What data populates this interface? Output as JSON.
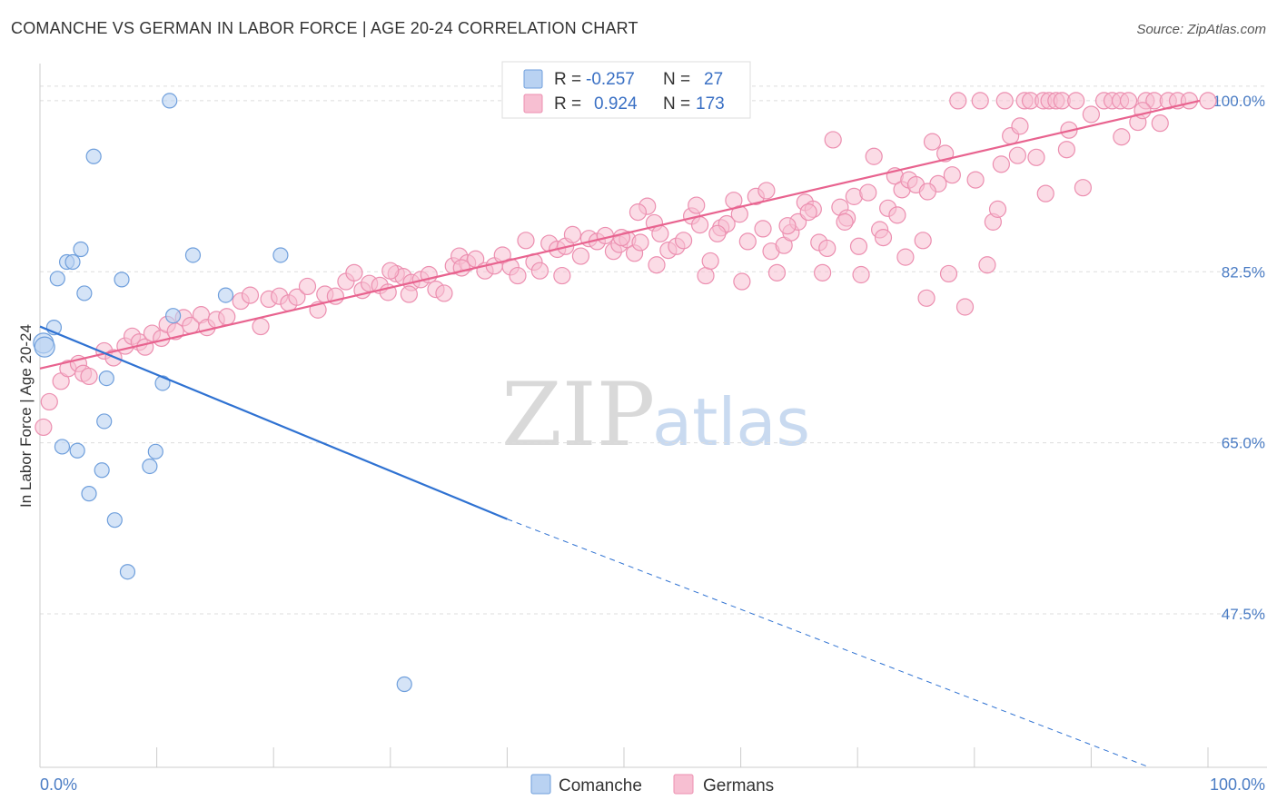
{
  "title": "COMANCHE VS GERMAN IN LABOR FORCE | AGE 20-24 CORRELATION CHART",
  "source": "Source: ZipAtlas.com",
  "watermark": {
    "zip": "ZIP",
    "atlas": "atlas"
  },
  "colors": {
    "comanche_fill": "#b9d2f2",
    "comanche_stroke": "#6f9fdc",
    "comanche_line": "#2f72d2",
    "german_fill": "#f7bfd2",
    "german_stroke": "#ec8fb0",
    "german_line": "#e8638f",
    "grid": "#dddddd",
    "axis_text": "#4a7cc4"
  },
  "legend": {
    "rows": [
      {
        "r_label": "R =",
        "r_value": "-0.257",
        "n_label": "N =",
        "n_value": "27"
      },
      {
        "r_label": "R =",
        "r_value": "0.924",
        "n_label": "N =",
        "n_value": "173"
      }
    ]
  },
  "bottom_legend": [
    "Comanche",
    "Germans"
  ],
  "chart_data": {
    "type": "scatter",
    "title": "COMANCHE VS GERMAN IN LABOR FORCE | AGE 20-24 CORRELATION CHART",
    "xlabel": "",
    "ylabel": "In Labor Force | Age 20-24",
    "xlim": [
      0,
      100
    ],
    "ylim": [
      31.8,
      103.8
    ],
    "x_tick_labels": [
      "0.0%",
      "100.0%"
    ],
    "y_ticks": [
      47.5,
      65.0,
      82.5,
      100.0
    ],
    "y_tick_labels": [
      "47.5%",
      "65.0%",
      "82.5%",
      "100.0%"
    ],
    "grid": "horizontal dashed",
    "legend_position": "top-center",
    "series": [
      {
        "name": "Comanche",
        "R": -0.257,
        "N": 27,
        "trend": {
          "x0": 0,
          "y0": 76.9,
          "x1": 40,
          "y1": 57.2,
          "dashed_to_x": 95,
          "dashed_to_y": 31.8
        },
        "points": [
          [
            0.3,
            75.2
          ],
          [
            0.4,
            74.8
          ],
          [
            1.2,
            76.8
          ],
          [
            1.5,
            81.8
          ],
          [
            2.3,
            83.5
          ],
          [
            2.8,
            83.5
          ],
          [
            3.5,
            84.8
          ],
          [
            3.8,
            80.3
          ],
          [
            4.6,
            94.3
          ],
          [
            5.5,
            67.2
          ],
          [
            5.7,
            71.6
          ],
          [
            6.4,
            57.1
          ],
          [
            7.0,
            81.7
          ],
          [
            7.5,
            51.8
          ],
          [
            9.4,
            62.6
          ],
          [
            9.9,
            64.1
          ],
          [
            10.5,
            71.1
          ],
          [
            11.1,
            100.0
          ],
          [
            11.4,
            78.0
          ],
          [
            13.1,
            84.2
          ],
          [
            15.9,
            80.1
          ],
          [
            20.6,
            84.2
          ],
          [
            31.2,
            40.3
          ],
          [
            1.9,
            64.6
          ],
          [
            3.2,
            64.2
          ],
          [
            4.2,
            59.8
          ],
          [
            5.3,
            62.2
          ]
        ]
      },
      {
        "name": "Germans",
        "R": 0.924,
        "N": 173,
        "trend": {
          "x0": 0,
          "y0": 72.6,
          "x1": 99.3,
          "y1": 100.0
        },
        "points": [
          [
            0.3,
            66.6
          ],
          [
            0.8,
            69.2
          ],
          [
            1.8,
            71.3
          ],
          [
            2.4,
            72.6
          ],
          [
            3.3,
            73.1
          ],
          [
            3.7,
            72.1
          ],
          [
            4.2,
            71.8
          ],
          [
            5.5,
            74.4
          ],
          [
            6.3,
            73.7
          ],
          [
            7.3,
            74.9
          ],
          [
            7.9,
            75.9
          ],
          [
            8.5,
            75.3
          ],
          [
            9.0,
            74.8
          ],
          [
            9.6,
            76.2
          ],
          [
            10.4,
            75.7
          ],
          [
            10.9,
            77.1
          ],
          [
            11.6,
            76.4
          ],
          [
            12.3,
            77.8
          ],
          [
            12.9,
            77.0
          ],
          [
            13.8,
            78.1
          ],
          [
            14.3,
            76.8
          ],
          [
            15.1,
            77.6
          ],
          [
            16.0,
            77.9
          ],
          [
            17.2,
            79.5
          ],
          [
            18.0,
            80.1
          ],
          [
            18.9,
            76.9
          ],
          [
            19.6,
            79.7
          ],
          [
            20.5,
            80.0
          ],
          [
            21.3,
            79.3
          ],
          [
            22.0,
            79.9
          ],
          [
            22.9,
            81.0
          ],
          [
            23.8,
            78.6
          ],
          [
            24.4,
            80.2
          ],
          [
            25.3,
            80.0
          ],
          [
            26.2,
            81.5
          ],
          [
            26.9,
            82.4
          ],
          [
            27.6,
            80.6
          ],
          [
            28.2,
            81.3
          ],
          [
            29.1,
            81.1
          ],
          [
            29.8,
            80.4
          ],
          [
            30.5,
            82.3
          ],
          [
            31.1,
            82.0
          ],
          [
            31.8,
            81.4
          ],
          [
            32.6,
            81.7
          ],
          [
            33.3,
            82.2
          ],
          [
            33.9,
            80.7
          ],
          [
            34.6,
            80.3
          ],
          [
            35.4,
            83.1
          ],
          [
            35.9,
            84.1
          ],
          [
            36.6,
            83.4
          ],
          [
            37.3,
            83.8
          ],
          [
            38.1,
            82.6
          ],
          [
            38.9,
            83.1
          ],
          [
            39.6,
            84.2
          ],
          [
            40.3,
            83.0
          ],
          [
            40.9,
            82.1
          ],
          [
            41.6,
            85.7
          ],
          [
            42.3,
            83.5
          ],
          [
            42.8,
            82.6
          ],
          [
            43.6,
            85.4
          ],
          [
            44.3,
            84.8
          ],
          [
            45.0,
            85.1
          ],
          [
            45.6,
            86.3
          ],
          [
            46.3,
            84.1
          ],
          [
            47.0,
            85.9
          ],
          [
            47.7,
            85.6
          ],
          [
            48.4,
            86.2
          ],
          [
            49.1,
            84.6
          ],
          [
            49.6,
            85.3
          ],
          [
            50.3,
            85.8
          ],
          [
            50.9,
            84.4
          ],
          [
            51.4,
            85.5
          ],
          [
            52.0,
            89.2
          ],
          [
            52.6,
            87.5
          ],
          [
            53.1,
            86.4
          ],
          [
            53.8,
            84.7
          ],
          [
            54.5,
            85.1
          ],
          [
            55.1,
            85.7
          ],
          [
            55.8,
            88.2
          ],
          [
            56.2,
            89.3
          ],
          [
            57.0,
            82.1
          ],
          [
            57.4,
            83.6
          ],
          [
            58.3,
            87.0
          ],
          [
            58.8,
            87.4
          ],
          [
            59.4,
            89.8
          ],
          [
            59.9,
            88.4
          ],
          [
            60.6,
            85.6
          ],
          [
            61.3,
            90.2
          ],
          [
            61.9,
            86.9
          ],
          [
            62.6,
            84.6
          ],
          [
            63.1,
            82.4
          ],
          [
            63.7,
            85.2
          ],
          [
            64.3,
            86.5
          ],
          [
            64.9,
            87.6
          ],
          [
            65.5,
            89.6
          ],
          [
            66.2,
            88.9
          ],
          [
            66.7,
            85.5
          ],
          [
            67.4,
            84.9
          ],
          [
            67.9,
            96.0
          ],
          [
            68.5,
            89.1
          ],
          [
            69.1,
            88.0
          ],
          [
            69.7,
            90.2
          ],
          [
            70.3,
            82.2
          ],
          [
            70.9,
            90.6
          ],
          [
            71.4,
            94.3
          ],
          [
            71.9,
            86.8
          ],
          [
            72.6,
            89.0
          ],
          [
            73.2,
            92.3
          ],
          [
            73.8,
            90.9
          ],
          [
            74.4,
            91.9
          ],
          [
            75.0,
            91.4
          ],
          [
            75.6,
            85.7
          ],
          [
            75.9,
            79.8
          ],
          [
            76.4,
            95.8
          ],
          [
            76.9,
            91.5
          ],
          [
            77.5,
            94.6
          ],
          [
            78.1,
            92.4
          ],
          [
            78.6,
            100.0
          ],
          [
            79.2,
            78.9
          ],
          [
            80.5,
            100.0
          ],
          [
            81.1,
            83.2
          ],
          [
            81.6,
            87.6
          ],
          [
            82.0,
            88.9
          ],
          [
            82.6,
            100.0
          ],
          [
            83.1,
            96.4
          ],
          [
            83.7,
            94.4
          ],
          [
            84.3,
            100.0
          ],
          [
            84.8,
            100.0
          ],
          [
            85.3,
            94.2
          ],
          [
            85.9,
            100.0
          ],
          [
            86.4,
            100.0
          ],
          [
            87.0,
            100.0
          ],
          [
            87.5,
            100.0
          ],
          [
            88.1,
            97.0
          ],
          [
            88.7,
            100.0
          ],
          [
            89.3,
            91.1
          ],
          [
            91.1,
            100.0
          ],
          [
            91.8,
            100.0
          ],
          [
            92.5,
            100.0
          ],
          [
            93.2,
            100.0
          ],
          [
            94.0,
            97.8
          ],
          [
            94.7,
            100.0
          ],
          [
            95.4,
            100.0
          ],
          [
            95.9,
            97.7
          ],
          [
            96.6,
            100.0
          ],
          [
            97.4,
            100.0
          ],
          [
            98.4,
            100.0
          ],
          [
            100.0,
            100.0
          ],
          [
            30.0,
            82.6
          ],
          [
            31.6,
            80.2
          ],
          [
            36.1,
            82.9
          ],
          [
            44.7,
            82.1
          ],
          [
            49.8,
            86.0
          ],
          [
            51.2,
            88.6
          ],
          [
            52.8,
            83.2
          ],
          [
            56.5,
            87.3
          ],
          [
            58.0,
            86.4
          ],
          [
            60.1,
            81.5
          ],
          [
            62.2,
            90.8
          ],
          [
            64.0,
            87.2
          ],
          [
            65.8,
            88.6
          ],
          [
            67.0,
            82.4
          ],
          [
            68.9,
            87.6
          ],
          [
            70.1,
            85.1
          ],
          [
            72.2,
            86.0
          ],
          [
            73.4,
            88.3
          ],
          [
            74.1,
            84.0
          ],
          [
            76.0,
            90.7
          ],
          [
            77.8,
            82.3
          ],
          [
            80.1,
            91.9
          ],
          [
            82.3,
            93.5
          ],
          [
            83.9,
            97.4
          ],
          [
            86.1,
            90.5
          ],
          [
            87.9,
            95.0
          ],
          [
            90.0,
            98.6
          ],
          [
            92.6,
            96.3
          ],
          [
            94.4,
            99.0
          ]
        ]
      }
    ]
  }
}
